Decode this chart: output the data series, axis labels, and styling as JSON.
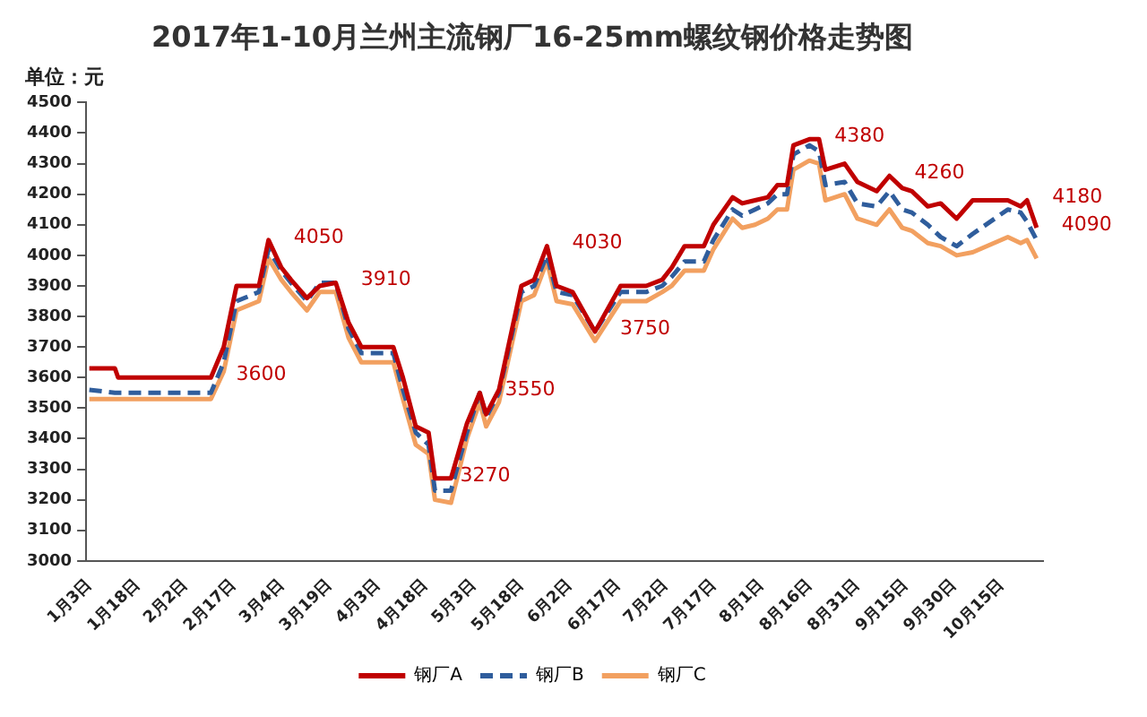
{
  "chart_data": {
    "type": "line",
    "title": "2017年1-10月兰州主流钢厂16-25mm螺纹钢价格走势图",
    "ylabel": "单位：元",
    "x": [
      "--01-03",
      "--01-11",
      "--01-12",
      "--02-10",
      "--02-14",
      "--02-18",
      "--02-25",
      "--02-28",
      "--03-04",
      "--03-07",
      "--03-12",
      "--03-16",
      "--03-21",
      "--03-25",
      "--03-29",
      "--04-08",
      "--04-11",
      "--04-15",
      "--04-19",
      "--04-21",
      "--04-26",
      "--05-01",
      "--05-05",
      "--05-07",
      "--05-11",
      "--05-18",
      "--05-22",
      "--05-26",
      "--05-29",
      "--06-03",
      "--06-10",
      "--06-18",
      "--06-26",
      "--07-01",
      "--07-04",
      "--07-08",
      "--07-14",
      "--07-17",
      "--07-23",
      "--07-26",
      "--07-30",
      "--08-03",
      "--08-06",
      "--08-09",
      "--08-11",
      "--08-16",
      "--08-19",
      "--08-21",
      "--08-27",
      "--08-31",
      "--09-06",
      "--09-10",
      "--09-14",
      "--09-17",
      "--09-22",
      "--09-26",
      "--10-01",
      "--10-06",
      "--10-17",
      "--10-21",
      "--10-23",
      "--10-26"
    ],
    "series": [
      {
        "name": "钢厂A",
        "color": "#c00000",
        "line_style": "solid",
        "values": [
          3630,
          3630,
          3600,
          3600,
          3700,
          3900,
          3900,
          4050,
          3960,
          3920,
          3860,
          3900,
          3910,
          3780,
          3700,
          3700,
          3600,
          3440,
          3420,
          3270,
          3270,
          3450,
          3550,
          3480,
          3560,
          3900,
          3920,
          4030,
          3900,
          3880,
          3750,
          3900,
          3900,
          3920,
          3960,
          4030,
          4030,
          4100,
          4190,
          4170,
          4180,
          4190,
          4230,
          4230,
          4360,
          4380,
          4380,
          4280,
          4300,
          4240,
          4210,
          4260,
          4220,
          4210,
          4160,
          4170,
          4120,
          4180,
          4180,
          4160,
          4180,
          4090
        ],
        "value_labels": [
          null,
          null,
          null,
          "3600",
          null,
          null,
          null,
          "4050",
          null,
          null,
          null,
          null,
          "3910",
          null,
          null,
          null,
          null,
          null,
          null,
          "3270",
          null,
          null,
          "3550",
          null,
          null,
          null,
          null,
          "4030",
          null,
          null,
          "3750",
          null,
          null,
          null,
          null,
          null,
          null,
          null,
          null,
          null,
          null,
          null,
          null,
          null,
          null,
          "4380",
          null,
          null,
          null,
          null,
          null,
          "4260",
          null,
          null,
          null,
          null,
          null,
          null,
          null,
          null,
          "4180",
          "4090"
        ]
      },
      {
        "name": "钢厂B",
        "color": "#2f5d9c",
        "line_style": "dashed",
        "values": [
          3560,
          3550,
          3550,
          3550,
          3650,
          3850,
          3880,
          4020,
          3950,
          3910,
          3850,
          3910,
          3910,
          3760,
          3680,
          3680,
          3560,
          3420,
          3380,
          3230,
          3230,
          3420,
          3550,
          3470,
          3550,
          3880,
          3900,
          4000,
          3880,
          3870,
          3750,
          3880,
          3880,
          3900,
          3930,
          3980,
          3980,
          4050,
          4150,
          4130,
          4150,
          4170,
          4200,
          4200,
          4330,
          4360,
          4340,
          4230,
          4240,
          4170,
          4160,
          4210,
          4150,
          4140,
          4100,
          4060,
          4030,
          4070,
          4150,
          4140,
          4110,
          4050
        ]
      },
      {
        "name": "钢厂C",
        "color": "#f2a060",
        "line_style": "solid",
        "values": [
          3530,
          3530,
          3530,
          3530,
          3620,
          3820,
          3850,
          3990,
          3920,
          3880,
          3820,
          3880,
          3880,
          3730,
          3650,
          3650,
          3530,
          3380,
          3350,
          3200,
          3190,
          3400,
          3520,
          3440,
          3520,
          3850,
          3870,
          3980,
          3850,
          3840,
          3720,
          3850,
          3850,
          3880,
          3900,
          3950,
          3950,
          4020,
          4120,
          4090,
          4100,
          4120,
          4150,
          4150,
          4280,
          4310,
          4300,
          4180,
          4200,
          4120,
          4100,
          4150,
          4090,
          4080,
          4040,
          4030,
          4000,
          4010,
          4060,
          4040,
          4050,
          3990
        ]
      }
    ],
    "xlim": [
      "--01-02",
      "--10-28"
    ],
    "xticks": [
      {
        "value": "--01-03",
        "label": "1月3日"
      },
      {
        "value": "--01-18",
        "label": "1月18日"
      },
      {
        "value": "--02-02",
        "label": "2月2日"
      },
      {
        "value": "--02-17",
        "label": "2月17日"
      },
      {
        "value": "--03-04",
        "label": "3月4日"
      },
      {
        "value": "--03-19",
        "label": "3月19日"
      },
      {
        "value": "--04-03",
        "label": "4月3日"
      },
      {
        "value": "--04-18",
        "label": "4月18日"
      },
      {
        "value": "--05-03",
        "label": "5月3日"
      },
      {
        "value": "--05-18",
        "label": "5月18日"
      },
      {
        "value": "--06-02",
        "label": "6月2日"
      },
      {
        "value": "--06-17",
        "label": "6月17日"
      },
      {
        "value": "--07-02",
        "label": "7月2日"
      },
      {
        "value": "--07-17",
        "label": "7月17日"
      },
      {
        "value": "--08-01",
        "label": "8月1日"
      },
      {
        "value": "--08-16",
        "label": "8月16日"
      },
      {
        "value": "--08-31",
        "label": "8月31日"
      },
      {
        "value": "--09-15",
        "label": "9月15日"
      },
      {
        "value": "--09-30",
        "label": "9月30日"
      },
      {
        "value": "--10-15",
        "label": "10月15日"
      }
    ],
    "ylim": [
      3000,
      4500
    ],
    "yticks": [
      3000,
      3100,
      3200,
      3300,
      3400,
      3500,
      3600,
      3700,
      3800,
      3900,
      4000,
      4100,
      4200,
      4300,
      4400,
      4500
    ],
    "grid": false,
    "legend": "bottom",
    "marker": "none"
  }
}
